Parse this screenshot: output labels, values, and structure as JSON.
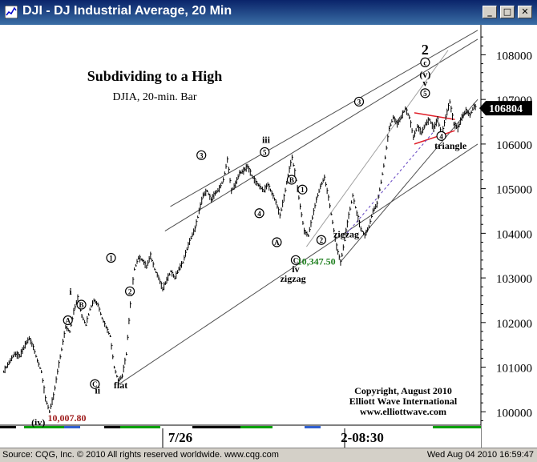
{
  "window": {
    "title": "DJI - DJ Industrial Average, 20 Min"
  },
  "status": {
    "left": "Source: CQG, Inc. © 2010 All rights reserved worldwide. www.cqg.com",
    "right": "Wed Aug 04 2010 16:59:47"
  },
  "chart_data": {
    "type": "bar",
    "title": "Subdividing to a High",
    "subtitle": "DJIA, 20-min. Bar",
    "ylim": [
      99700,
      108600
    ],
    "y_ticks": [
      100000,
      101000,
      102000,
      103000,
      104000,
      105000,
      106000,
      107000,
      108000
    ],
    "y_tick_labels": [
      "100000",
      "101000",
      "102000",
      "103000",
      "104000",
      "105000",
      "106000",
      "107000",
      "108000"
    ],
    "x_tick_labels": [
      "7/26",
      "2-08:30"
    ],
    "last_price": "106804",
    "price_path": [
      [
        0,
        100900
      ],
      [
        4,
        101100
      ],
      [
        8,
        101300
      ],
      [
        12,
        101250
      ],
      [
        16,
        101500
      ],
      [
        19,
        101650
      ],
      [
        22,
        101450
      ],
      [
        25,
        101150
      ],
      [
        28,
        100900
      ],
      [
        31,
        100300
      ],
      [
        34,
        100008
      ],
      [
        37,
        100350
      ],
      [
        40,
        100900
      ],
      [
        43,
        101400
      ],
      [
        46,
        101900
      ],
      [
        49,
        101800
      ],
      [
        52,
        102250
      ],
      [
        55,
        102550
      ],
      [
        58,
        102150
      ],
      [
        61,
        101950
      ],
      [
        64,
        102300
      ],
      [
        67,
        102500
      ],
      [
        70,
        102400
      ],
      [
        73,
        102100
      ],
      [
        76,
        101900
      ],
      [
        79,
        101700
      ],
      [
        82,
        101000
      ],
      [
        85,
        100700
      ],
      [
        88,
        100800
      ],
      [
        91,
        101300
      ],
      [
        94,
        102400
      ],
      [
        97,
        103200
      ],
      [
        100,
        103450
      ],
      [
        103,
        103400
      ],
      [
        106,
        103250
      ],
      [
        109,
        103500
      ],
      [
        112,
        103200
      ],
      [
        115,
        103000
      ],
      [
        118,
        102750
      ],
      [
        121,
        102950
      ],
      [
        124,
        103150
      ],
      [
        127,
        103000
      ],
      [
        130,
        103200
      ],
      [
        133,
        103350
      ],
      [
        136,
        103650
      ],
      [
        139,
        103900
      ],
      [
        142,
        104100
      ],
      [
        145,
        104500
      ],
      [
        148,
        104850
      ],
      [
        151,
        104950
      ],
      [
        154,
        104750
      ],
      [
        157,
        104900
      ],
      [
        160,
        105000
      ],
      [
        163,
        105200
      ],
      [
        166,
        105650
      ],
      [
        169,
        104950
      ],
      [
        172,
        105100
      ],
      [
        175,
        105350
      ],
      [
        178,
        105400
      ],
      [
        181,
        105500
      ],
      [
        184,
        105300
      ],
      [
        187,
        105150
      ],
      [
        190,
        105050
      ],
      [
        193,
        104950
      ],
      [
        196,
        105100
      ],
      [
        199,
        104900
      ],
      [
        202,
        104700
      ],
      [
        205,
        104400
      ],
      [
        208,
        104800
      ],
      [
        211,
        105300
      ],
      [
        214,
        105700
      ],
      [
        217,
        105200
      ],
      [
        220,
        104600
      ],
      [
        223,
        104050
      ],
      [
        226,
        103950
      ],
      [
        229,
        104350
      ],
      [
        232,
        104750
      ],
      [
        235,
        105050
      ],
      [
        238,
        105250
      ],
      [
        241,
        104800
      ],
      [
        244,
        104250
      ],
      [
        247,
        103700
      ],
      [
        250,
        103348
      ],
      [
        253,
        103850
      ],
      [
        256,
        104400
      ],
      [
        259,
        104850
      ],
      [
        262,
        104450
      ],
      [
        265,
        104100
      ],
      [
        268,
        103950
      ],
      [
        271,
        104150
      ],
      [
        274,
        104500
      ],
      [
        277,
        104650
      ],
      [
        280,
        105150
      ],
      [
        283,
        105700
      ],
      [
        286,
        106350
      ],
      [
        289,
        106600
      ],
      [
        292,
        106450
      ],
      [
        295,
        106600
      ],
      [
        298,
        106800
      ],
      [
        301,
        106600
      ],
      [
        304,
        106150
      ],
      [
        307,
        106400
      ],
      [
        310,
        106250
      ],
      [
        313,
        106450
      ],
      [
        316,
        106550
      ],
      [
        319,
        106350
      ],
      [
        322,
        106550
      ],
      [
        325,
        106200
      ],
      [
        328,
        106600
      ],
      [
        331,
        106950
      ],
      [
        334,
        106450
      ],
      [
        337,
        106350
      ],
      [
        340,
        106600
      ],
      [
        343,
        106750
      ],
      [
        346,
        106650
      ],
      [
        349,
        106850
      ],
      [
        351,
        106804
      ]
    ],
    "x_max": 352,
    "channel_lines": [
      {
        "name": "upper",
        "from": [
          120,
          104050
        ],
        "to": [
          352,
          108350
        ]
      },
      {
        "name": "middle",
        "from": [
          124,
          104600
        ],
        "to": [
          352,
          108550
        ]
      },
      {
        "name": "lower",
        "from": [
          85,
          100600
        ],
        "to": [
          352,
          106000
        ]
      },
      {
        "name": "support",
        "from": [
          250,
          103350
        ],
        "to": [
          352,
          107000
        ]
      },
      {
        "name": "support2",
        "from": [
          225,
          103700
        ],
        "to": [
          330,
          108100
        ]
      }
    ],
    "triangle_lines": [
      {
        "from": [
          305,
          106700
        ],
        "to": [
          335,
          106550
        ]
      },
      {
        "from": [
          305,
          106000
        ],
        "to": [
          335,
          106300
        ]
      }
    ],
    "dashed_lines": [
      {
        "from": [
          255,
          104000
        ],
        "to": [
          320,
          106300
        ]
      }
    ],
    "wave_labels": [
      {
        "text": "(iv)",
        "x": 26,
        "y": 99760,
        "style": "plain"
      },
      {
        "text": "10,007.80",
        "x": 33,
        "y": 99860,
        "style": "price-red"
      },
      {
        "text": "i",
        "x": 50,
        "y": 102700,
        "style": "plain"
      },
      {
        "text": "A",
        "x": 48,
        "y": 102050,
        "style": "circle"
      },
      {
        "text": "B",
        "x": 58,
        "y": 102400,
        "style": "circle"
      },
      {
        "text": "C",
        "x": 68,
        "y": 100620,
        "style": "circle"
      },
      {
        "text": "ii",
        "x": 70,
        "y": 100480,
        "style": "plain"
      },
      {
        "text": "flat",
        "x": 82,
        "y": 100600,
        "style": "plain-bold"
      },
      {
        "text": "1",
        "x": 80,
        "y": 103450,
        "style": "circle"
      },
      {
        "text": "2",
        "x": 94,
        "y": 102700,
        "style": "circle"
      },
      {
        "text": "3",
        "x": 147,
        "y": 105750,
        "style": "circle"
      },
      {
        "text": "iii",
        "x": 195,
        "y": 106100,
        "style": "plain"
      },
      {
        "text": "5",
        "x": 194,
        "y": 105820,
        "style": "circle"
      },
      {
        "text": "4",
        "x": 190,
        "y": 104450,
        "style": "circle"
      },
      {
        "text": "A",
        "x": 203,
        "y": 103800,
        "style": "circle"
      },
      {
        "text": "B",
        "x": 214,
        "y": 105200,
        "style": "circle"
      },
      {
        "text": "1",
        "x": 222,
        "y": 104980,
        "style": "circle"
      },
      {
        "text": "2",
        "x": 236,
        "y": 103850,
        "style": "circle"
      },
      {
        "text": "C",
        "x": 217,
        "y": 103400,
        "style": "circle"
      },
      {
        "text": "iv",
        "x": 217,
        "y": 103200,
        "style": "plain"
      },
      {
        "text": "zigzag",
        "x": 215,
        "y": 102980,
        "style": "plain"
      },
      {
        "text": "10,347.50",
        "x": 218,
        "y": 103370,
        "style": "price-green"
      },
      {
        "text": "zigzag",
        "x": 245,
        "y": 103980,
        "style": "plain-bold"
      },
      {
        "text": "3",
        "x": 264,
        "y": 106950,
        "style": "circle"
      },
      {
        "text": "4",
        "x": 325,
        "y": 106180,
        "style": "circle"
      },
      {
        "text": "triangle",
        "x": 320,
        "y": 105960,
        "style": "plain-bold"
      },
      {
        "text": "5",
        "x": 313,
        "y": 107140,
        "style": "circle"
      },
      {
        "text": "v",
        "x": 313,
        "y": 107370,
        "style": "plain"
      },
      {
        "text": "(v)",
        "x": 313,
        "y": 107560,
        "style": "plain"
      },
      {
        "text": "c",
        "x": 313,
        "y": 107830,
        "style": "circle"
      },
      {
        "text": "2",
        "x": 313,
        "y": 108080,
        "style": "big"
      }
    ],
    "copyright": {
      "line1": "Copyright, August 2010",
      "line2": "Elliott Wave International",
      "line3": "www.elliottwave.com"
    }
  }
}
